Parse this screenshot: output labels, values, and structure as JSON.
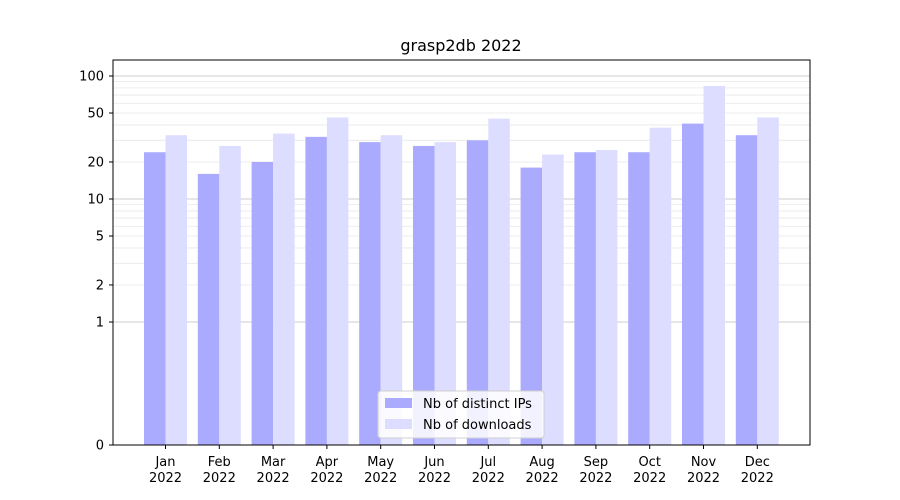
{
  "chart_data": {
    "type": "bar",
    "title": "grasp2db 2022",
    "xlabel": "",
    "ylabel": "",
    "scale": "symlog",
    "ylim": [
      0,
      100
    ],
    "y_ticks": [
      0,
      1,
      2,
      5,
      10,
      20,
      50,
      100
    ],
    "y_tick_labels": [
      "0",
      "1",
      "2",
      "5",
      "10",
      "20",
      "50",
      "100"
    ],
    "categories": [
      "Jan\n2022",
      "Feb\n2022",
      "Mar\n2022",
      "Apr\n2022",
      "May\n2022",
      "Jun\n2022",
      "Jul\n2022",
      "Aug\n2022",
      "Sep\n2022",
      "Oct\n2022",
      "Nov\n2022",
      "Dec\n2022"
    ],
    "series": [
      {
        "name": "Nb of distinct IPs",
        "color": "#aaaaff",
        "values": [
          24,
          16,
          20,
          32,
          29,
          27,
          30,
          18,
          24,
          24,
          41,
          33
        ]
      },
      {
        "name": "Nb of downloads",
        "color": "#ddddff",
        "values": [
          33,
          27,
          34,
          46,
          33,
          29,
          45,
          23,
          25,
          38,
          83,
          46
        ]
      }
    ],
    "grid": true,
    "legend_position": "bottom-center"
  }
}
